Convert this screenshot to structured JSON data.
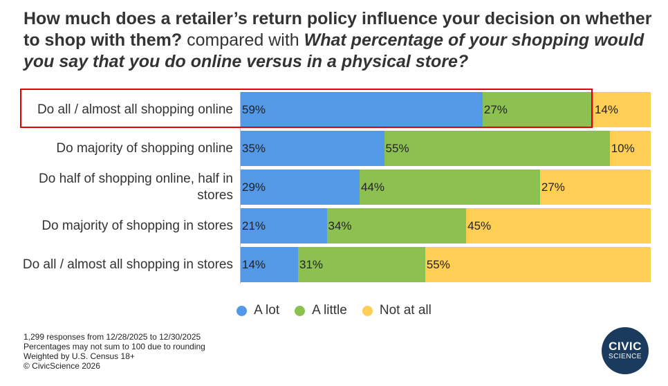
{
  "title": {
    "question1": "How much does a retailer’s return policy influence your decision on whether to shop with them?",
    "connector": "compared with",
    "question2": "What percentage of your shopping would you say that you do online versus in a physical store?"
  },
  "colors": {
    "A lot": "#5499e8",
    "A little": "#8cc152",
    "Not at all": "#ffce54",
    "highlight": "#e00000"
  },
  "chart_data": {
    "type": "bar",
    "orientation": "horizontal",
    "stacked": true,
    "categories": [
      "Do all / almost all shopping online",
      "Do majority of shopping online",
      "Do half of shopping online, half in stores",
      "Do majority of shopping in stores",
      "Do all / almost all shopping in stores"
    ],
    "series": [
      {
        "name": "A lot",
        "values": [
          59,
          35,
          29,
          21,
          14
        ]
      },
      {
        "name": "A little",
        "values": [
          27,
          55,
          44,
          34,
          31
        ]
      },
      {
        "name": "Not at all",
        "values": [
          14,
          10,
          27,
          45,
          55
        ]
      }
    ],
    "value_labels": [
      [
        "59%",
        "27%",
        "14%"
      ],
      [
        "35%",
        "55%",
        "10%"
      ],
      [
        "29%",
        "44%",
        "27%"
      ],
      [
        "21%",
        "34%",
        "45%"
      ],
      [
        "14%",
        "31%",
        "55%"
      ]
    ],
    "xlim": [
      0,
      100
    ],
    "legend_position": "bottom-center",
    "grid": false,
    "highlighted_category": "Do all / almost all shopping online"
  },
  "legend": [
    "A lot",
    "A little",
    "Not at all"
  ],
  "notes": [
    "1,299 responses from 12/28/2025 to 12/30/2025",
    "Percentages may not sum to 100 due to rounding",
    "Weighted by U.S. Census 18+",
    "© CivicScience 2026"
  ],
  "logo": {
    "line1": "CIVIC",
    "line2": "SCIENCE"
  }
}
